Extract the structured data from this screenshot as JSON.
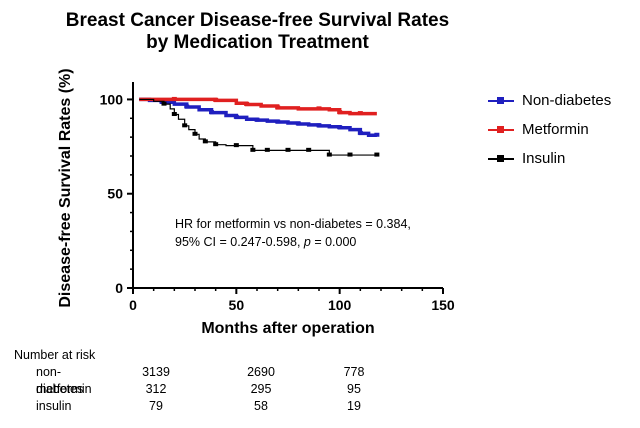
{
  "chart_data": {
    "type": "line",
    "title": [
      "Breast Cancer Disease-free Survival Rates",
      "by Medication Treatment"
    ],
    "xlabel": "Months after operation",
    "ylabel": "Disease-free Survival Rates (%)",
    "xlim": [
      0,
      150
    ],
    "ylim": [
      0,
      105
    ],
    "xticks": [
      "0",
      "50",
      "100",
      "150"
    ],
    "yticks": [
      "0",
      "50",
      "100"
    ],
    "legend_position": "right",
    "annotation": {
      "line1": "HR for metformin vs non-diabetes = 0.384,",
      "line2_prefix": "95% CI = 0.247-0.598, ",
      "line2_p": "p",
      "line2_suffix": " = 0.000"
    },
    "series": [
      {
        "name": "Non-diabetes",
        "color": "#1f1fbf",
        "x": [
          3,
          8,
          14,
          20,
          26,
          32,
          38,
          45,
          50,
          55,
          60,
          65,
          70,
          75,
          80,
          85,
          90,
          95,
          100,
          105,
          110,
          114,
          118
        ],
        "y": [
          100,
          99.5,
          98.5,
          97.5,
          96,
          94.5,
          93,
          91.5,
          90.5,
          89.5,
          89,
          88.5,
          88,
          87.5,
          87,
          86.5,
          86,
          85.5,
          85,
          84,
          82,
          81,
          81
        ]
      },
      {
        "name": "Metformin",
        "color": "#e02020",
        "x": [
          3,
          10,
          20,
          30,
          40,
          50,
          55,
          62,
          70,
          80,
          90,
          95,
          100,
          105,
          110,
          118
        ],
        "y": [
          100,
          100,
          100,
          100,
          99.5,
          98,
          97.3,
          96.5,
          95.5,
          95,
          95,
          94.5,
          93,
          92.5,
          92.5,
          92.5
        ]
      },
      {
        "name": "Insulin",
        "color": "#000000",
        "x": [
          3,
          10,
          15,
          18,
          20,
          22,
          25,
          27,
          30,
          32,
          35,
          38,
          40,
          45,
          50,
          55,
          58,
          60,
          65,
          70,
          75,
          80,
          85,
          90,
          95,
          100,
          105,
          110,
          118
        ],
        "y": [
          100,
          99,
          97.5,
          95,
          92,
          89.5,
          86,
          84,
          81.5,
          79,
          77.5,
          77.5,
          76,
          75.5,
          75.5,
          75.5,
          73,
          73,
          73,
          73,
          73,
          73,
          73,
          73,
          70.5,
          70.5,
          70.5,
          70.5,
          70.5
        ]
      }
    ],
    "risk_table": {
      "title": "Number at risk",
      "rows": [
        {
          "label": "non-diabetes",
          "values": [
            "3139",
            "2690",
            "778"
          ]
        },
        {
          "label": "metformin",
          "values": [
            "312",
            "295",
            "95"
          ]
        },
        {
          "label": "insulin",
          "values": [
            "79",
            "58",
            "19"
          ]
        }
      ]
    }
  }
}
